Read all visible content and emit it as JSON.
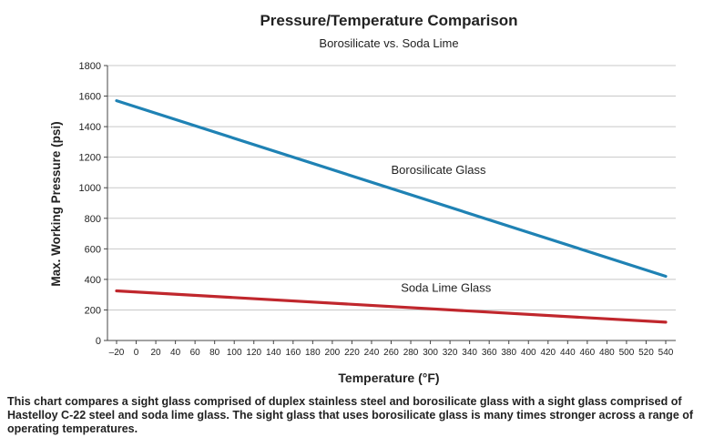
{
  "chart_data": {
    "type": "line",
    "title": "Pressure/Temperature Comparison",
    "subtitle": "Borosilicate vs. Soda Lime",
    "xlabel": "Temperature (°F)",
    "ylabel": "Max. Working Pressure (psi)",
    "xlim": [
      -20,
      540
    ],
    "ylim": [
      0,
      1800
    ],
    "x_ticks": [
      -20,
      0,
      20,
      40,
      60,
      80,
      100,
      120,
      140,
      160,
      180,
      200,
      220,
      240,
      260,
      280,
      300,
      320,
      340,
      360,
      380,
      400,
      420,
      440,
      460,
      480,
      500,
      520,
      540
    ],
    "x_tick_labels": [
      "–20",
      "0",
      "20",
      "40",
      "60",
      "80",
      "100",
      "120",
      "140",
      "160",
      "180",
      "200",
      "220",
      "240",
      "260",
      "280",
      "300",
      "320",
      "340",
      "360",
      "380",
      "400",
      "420",
      "440",
      "460",
      "480",
      "500",
      "520",
      "540"
    ],
    "y_ticks": [
      0,
      200,
      400,
      600,
      800,
      1000,
      1200,
      1400,
      1600,
      1800
    ],
    "y_tick_labels": [
      "0",
      "200",
      "400",
      "600",
      "800",
      "1000",
      "1200",
      "1400",
      "1600",
      "1800"
    ],
    "grid": "horizontal",
    "series": [
      {
        "name": "Borosilicate Glass",
        "color": "#1f82b4",
        "x": [
          -20,
          540
        ],
        "values": [
          1570,
          420
        ],
        "label_at": [
          260,
          1090
        ]
      },
      {
        "name": "Soda Lime Glass",
        "color": "#c0272d",
        "x": [
          -20,
          540
        ],
        "values": [
          325,
          120
        ],
        "label_at": [
          270,
          320
        ]
      }
    ]
  },
  "caption": "This chart compares a sight glass comprised of duplex stainless steel and borosilicate glass with a sight glass comprised of Hastelloy C-22 steel and soda lime glass. The sight glass that uses borosilicate glass is many times stronger across a range of operating temperatures."
}
